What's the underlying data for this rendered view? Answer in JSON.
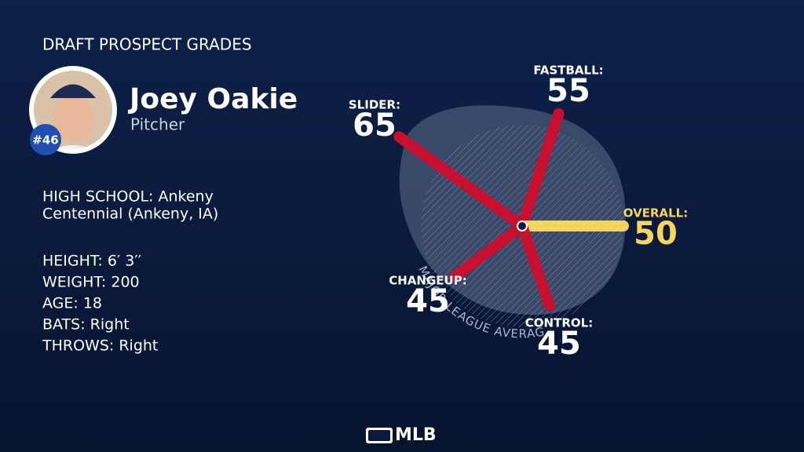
{
  "header": {
    "title": "DRAFT PROSPECT GRADES"
  },
  "player": {
    "name": "Joey Oakie",
    "position": "Pitcher",
    "rank": "#46",
    "details": [
      "HIGH SCHOOL: Ankeny",
      "Centennial (Ankeny, IA)"
    ],
    "stats": [
      "HEIGHT: 6′ 3′′",
      "WEIGHT: 200",
      "AGE: 18",
      "BATS: Right",
      "THROWS: Right"
    ]
  },
  "chart_data": {
    "type": "radial",
    "categories": [
      "SLIDER:",
      "FASTBALL:",
      "OVERALL:",
      "CONTROL:",
      "CHANGEUP:"
    ],
    "values": [
      65,
      55,
      50,
      45,
      45
    ],
    "colors": [
      "#c8102e",
      "#c8102e",
      "#f6d55c",
      "#c8102e",
      "#c8102e"
    ],
    "rlim": [
      20,
      70
    ],
    "average": 50,
    "annotation": "MAJOR LEAGUE AVERAGE"
  },
  "footer": {
    "logo": "MLB"
  }
}
